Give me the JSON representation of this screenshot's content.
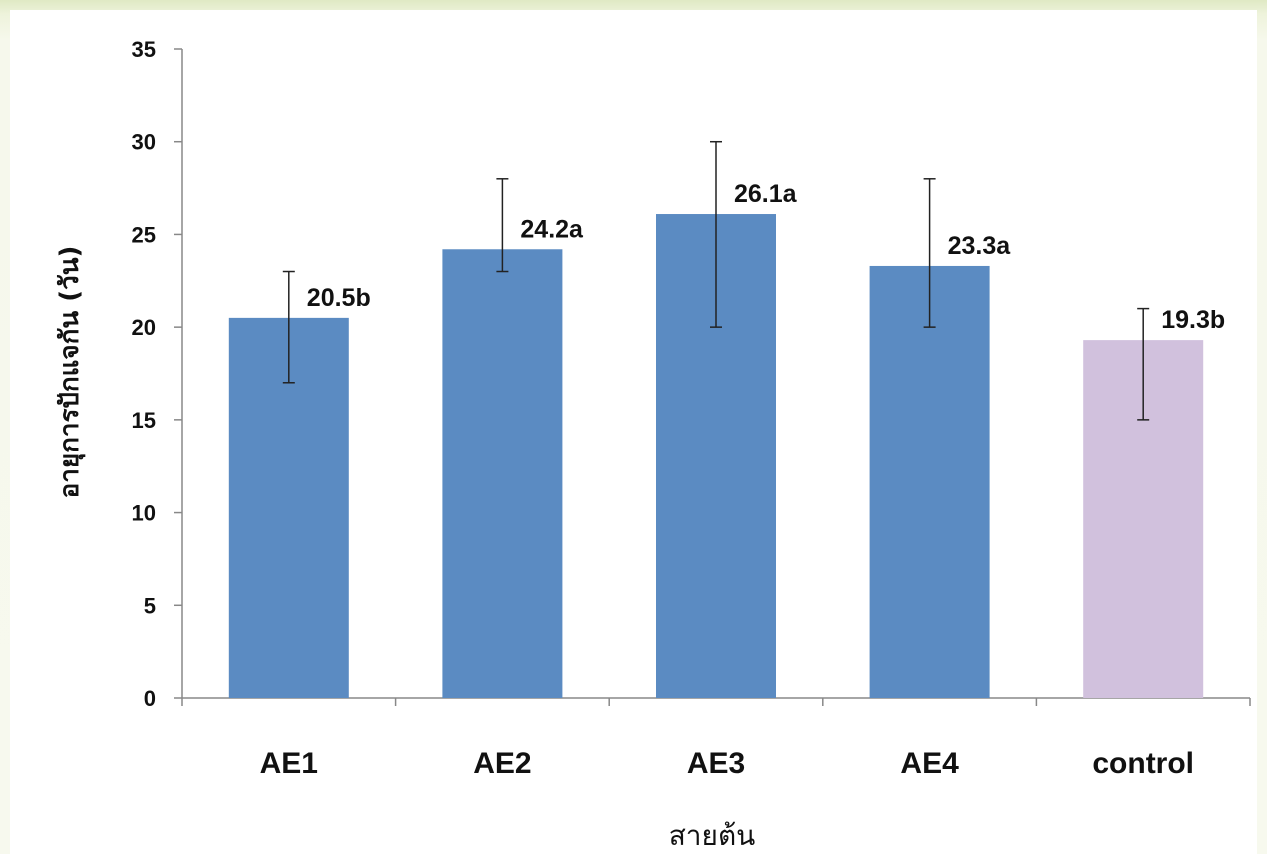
{
  "chart_data": {
    "type": "bar",
    "categories": [
      "AE1",
      "AE2",
      "AE3",
      "AE4",
      "control"
    ],
    "values": [
      20.5,
      24.2,
      26.1,
      23.3,
      19.3
    ],
    "error_low": [
      17,
      23,
      20,
      20,
      15
    ],
    "error_high": [
      23,
      28,
      30,
      28,
      21
    ],
    "data_labels": [
      "20.5b",
      "24.2a",
      "26.1a",
      "23.3a",
      "19.3b"
    ],
    "bar_colors": [
      "#5b8bc2",
      "#5b8bc2",
      "#5b8bc2",
      "#5b8bc2",
      "#d1c1dd"
    ],
    "xlabel": "สายต้น",
    "ylabel": "อายุการปักแจกัน (วัน)",
    "ylim": [
      0,
      35
    ],
    "yticks": [
      0,
      5,
      10,
      15,
      20,
      25,
      30,
      35
    ],
    "grid": false
  }
}
